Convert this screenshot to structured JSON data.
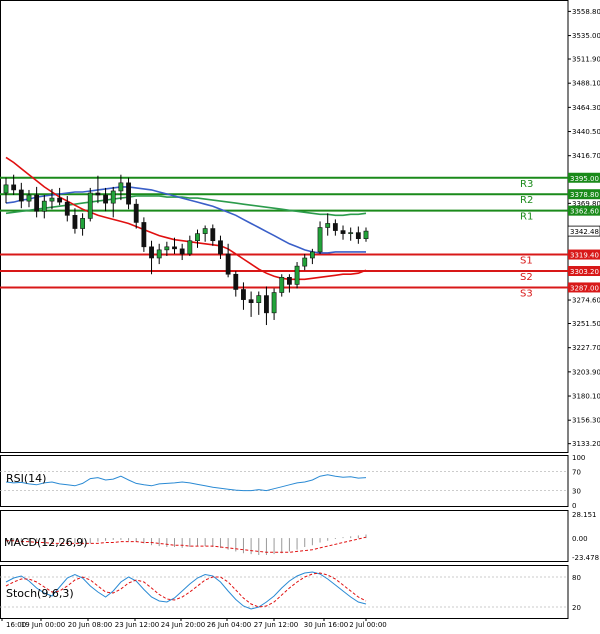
{
  "chart_data": {
    "type": "candlestick",
    "instrument_price_last": 3342.48,
    "price_axis_ticks": [
      3558.8,
      3535.0,
      3511.9,
      3488.1,
      3464.3,
      3440.5,
      3416.7,
      3369.8,
      3274.6,
      3251.5,
      3227.7,
      3203.9,
      3180.1,
      3156.3,
      3133.2
    ],
    "price_range": [
      3125,
      3570
    ],
    "time_labels": [
      "16:00",
      "19 Jun 00:00",
      "20 Jun 08:00",
      "23 Jun 12:00",
      "24 Jun 20:00",
      "26 Jun 04:00",
      "27 Jun 12:00",
      "30 Jun 16:00",
      "2 Jul 00:00"
    ],
    "levels": [
      {
        "name": "R3",
        "value": 3395.0,
        "label": "3395.00",
        "color": "#1a8a1a"
      },
      {
        "name": "R2",
        "value": 3378.8,
        "label": "3378.80",
        "color": "#1a8a1a"
      },
      {
        "name": "R1",
        "value": 3362.6,
        "label": "3362.60",
        "color": "#1a8a1a"
      },
      {
        "name": "S1",
        "value": 3319.4,
        "label": "3319.40",
        "color": "#d81818"
      },
      {
        "name": "S2",
        "value": 3303.2,
        "label": "3303.20",
        "color": "#d81818"
      },
      {
        "name": "S3",
        "value": 3287.0,
        "label": "3287.00",
        "color": "#d81818"
      }
    ],
    "candles": [
      [
        3380,
        3395,
        3370,
        3388
      ],
      [
        3388,
        3398,
        3378,
        3383
      ],
      [
        3383,
        3390,
        3365,
        3372
      ],
      [
        3372,
        3383,
        3366,
        3378
      ],
      [
        3378,
        3386,
        3356,
        3362
      ],
      [
        3362,
        3378,
        3355,
        3372
      ],
      [
        3372,
        3384,
        3364,
        3375
      ],
      [
        3375,
        3385,
        3368,
        3371
      ],
      [
        3371,
        3377,
        3352,
        3358
      ],
      [
        3358,
        3365,
        3340,
        3345
      ],
      [
        3345,
        3360,
        3338,
        3355
      ],
      [
        3355,
        3385,
        3352,
        3380
      ],
      [
        3380,
        3397,
        3370,
        3378
      ],
      [
        3378,
        3385,
        3362,
        3370
      ],
      [
        3370,
        3386,
        3356,
        3382
      ],
      [
        3382,
        3398,
        3373,
        3390
      ],
      [
        3390,
        3395,
        3364,
        3369
      ],
      [
        3369,
        3374,
        3345,
        3351
      ],
      [
        3351,
        3356,
        3322,
        3327
      ],
      [
        3327,
        3333,
        3300,
        3316
      ],
      [
        3316,
        3330,
        3310,
        3324
      ],
      [
        3324,
        3332,
        3318,
        3327
      ],
      [
        3327,
        3336,
        3320,
        3325
      ],
      [
        3325,
        3330,
        3314,
        3320
      ],
      [
        3320,
        3338,
        3318,
        3333
      ],
      [
        3333,
        3344,
        3326,
        3340
      ],
      [
        3340,
        3348,
        3332,
        3345
      ],
      [
        3345,
        3349,
        3328,
        3333
      ],
      [
        3333,
        3338,
        3315,
        3320
      ],
      [
        3320,
        3330,
        3297,
        3300
      ],
      [
        3300,
        3303,
        3278,
        3285
      ],
      [
        3285,
        3292,
        3265,
        3275
      ],
      [
        3275,
        3283,
        3258,
        3272
      ],
      [
        3272,
        3283,
        3260,
        3279
      ],
      [
        3279,
        3288,
        3250,
        3262
      ],
      [
        3262,
        3286,
        3255,
        3282
      ],
      [
        3282,
        3300,
        3278,
        3297
      ],
      [
        3297,
        3300,
        3282,
        3290
      ],
      [
        3290,
        3312,
        3286,
        3308
      ],
      [
        3308,
        3320,
        3304,
        3316
      ],
      [
        3316,
        3325,
        3310,
        3322
      ],
      [
        3322,
        3352,
        3320,
        3346
      ],
      [
        3346,
        3360,
        3338,
        3350
      ],
      [
        3350,
        3354,
        3338,
        3343
      ],
      [
        3343,
        3348,
        3334,
        3340
      ],
      [
        3340,
        3346,
        3333,
        3341
      ],
      [
        3341,
        3347,
        3330,
        3335
      ],
      [
        3335,
        3346,
        3332,
        3342.48
      ]
    ],
    "ma_series": [
      {
        "color": "#2c9c4c",
        "values": [
          3360,
          3361,
          3362,
          3363,
          3364,
          3365,
          3366,
          3367,
          3368,
          3369,
          3370,
          3371,
          3372,
          3373,
          3374,
          3375,
          3376,
          3377,
          3377,
          3377,
          3377,
          3376,
          3376,
          3376,
          3375,
          3375,
          3374,
          3373,
          3372,
          3371,
          3370,
          3369,
          3368,
          3367,
          3366,
          3365,
          3364,
          3363,
          3362,
          3361,
          3360,
          3359,
          3359,
          3358,
          3358,
          3359,
          3359,
          3360
        ]
      },
      {
        "color": "#3a5fc8",
        "values": [
          3370,
          3371,
          3373,
          3374,
          3376,
          3377,
          3378,
          3379,
          3380,
          3381,
          3381,
          3382,
          3383,
          3384,
          3385,
          3386,
          3386,
          3385,
          3384,
          3383,
          3381,
          3379,
          3377,
          3375,
          3373,
          3371,
          3369,
          3367,
          3364,
          3361,
          3358,
          3354,
          3350,
          3346,
          3342,
          3338,
          3334,
          3330,
          3327,
          3324,
          3322,
          3321,
          3321,
          3322,
          3322,
          3322,
          3322,
          3322
        ]
      },
      {
        "color": "#e01010",
        "values": [
          3415,
          3410,
          3404,
          3398,
          3392,
          3386,
          3381,
          3376,
          3372,
          3368,
          3364,
          3361,
          3358,
          3356,
          3354,
          3352,
          3350,
          3347,
          3344,
          3341,
          3338,
          3336,
          3334,
          3333,
          3332,
          3331,
          3330,
          3329,
          3328,
          3325,
          3320,
          3315,
          3310,
          3305,
          3301,
          3298,
          3296,
          3295,
          3295,
          3295,
          3296,
          3297,
          3298,
          3299,
          3300,
          3300,
          3301,
          3304
        ]
      }
    ],
    "rsi": {
      "label": "RSI(14)",
      "ticks": [
        100,
        70,
        30,
        0
      ],
      "values": [
        48,
        46,
        47,
        44,
        42,
        46,
        48,
        44,
        42,
        40,
        45,
        55,
        57,
        52,
        54,
        60,
        52,
        45,
        42,
        40,
        44,
        45,
        46,
        48,
        46,
        43,
        40,
        37,
        35,
        33,
        31,
        30,
        30,
        32,
        30,
        34,
        38,
        42,
        46,
        48,
        52,
        60,
        63,
        60,
        58,
        59,
        56,
        57
      ]
    },
    "macd": {
      "label": "MACD(12,26,9)",
      "ticks": [
        "28.151",
        "0.00",
        "-23.478"
      ],
      "range": [
        -23.478,
        28.151
      ],
      "histogram": [
        -2,
        -3,
        -4,
        -5,
        -6,
        -7,
        -6,
        -5,
        -5,
        -6,
        -7,
        -6,
        -4,
        -3,
        -2,
        -2,
        -3,
        -4,
        -6,
        -8,
        -9,
        -10,
        -10,
        -11,
        -10,
        -9,
        -9,
        -10,
        -11,
        -13,
        -15,
        -17,
        -18,
        -19,
        -19,
        -18,
        -17,
        -15,
        -13,
        -10,
        -8,
        -5,
        -3,
        -1,
        1,
        2,
        3,
        4
      ],
      "signal": [
        -3,
        -3,
        -4,
        -4,
        -5,
        -5,
        -6,
        -6,
        -6,
        -6,
        -6,
        -6,
        -6,
        -5,
        -5,
        -4,
        -4,
        -4,
        -5,
        -5,
        -6,
        -7,
        -8,
        -8,
        -9,
        -9,
        -9,
        -9,
        -10,
        -11,
        -12,
        -13,
        -14,
        -15,
        -16,
        -16,
        -16,
        -16,
        -15,
        -14,
        -13,
        -11,
        -9,
        -7,
        -5,
        -3,
        -1,
        1
      ]
    },
    "stoch": {
      "label": "Stoch(9,6,3)",
      "ticks": [
        80,
        20
      ],
      "k": [
        70,
        78,
        82,
        72,
        58,
        48,
        42,
        60,
        78,
        85,
        78,
        62,
        50,
        40,
        52,
        70,
        80,
        72,
        55,
        40,
        32,
        30,
        38,
        52,
        66,
        78,
        85,
        82,
        70,
        52,
        35,
        22,
        16,
        20,
        30,
        42,
        58,
        72,
        82,
        88,
        90,
        86,
        76,
        64,
        52,
        40,
        30,
        26
      ],
      "d": [
        62,
        70,
        76,
        76,
        70,
        60,
        50,
        52,
        62,
        74,
        80,
        74,
        62,
        50,
        48,
        56,
        68,
        74,
        70,
        58,
        45,
        36,
        34,
        40,
        50,
        62,
        74,
        80,
        80,
        70,
        54,
        38,
        26,
        20,
        22,
        30,
        44,
        58,
        70,
        80,
        86,
        88,
        84,
        76,
        64,
        52,
        40,
        32
      ]
    }
  }
}
